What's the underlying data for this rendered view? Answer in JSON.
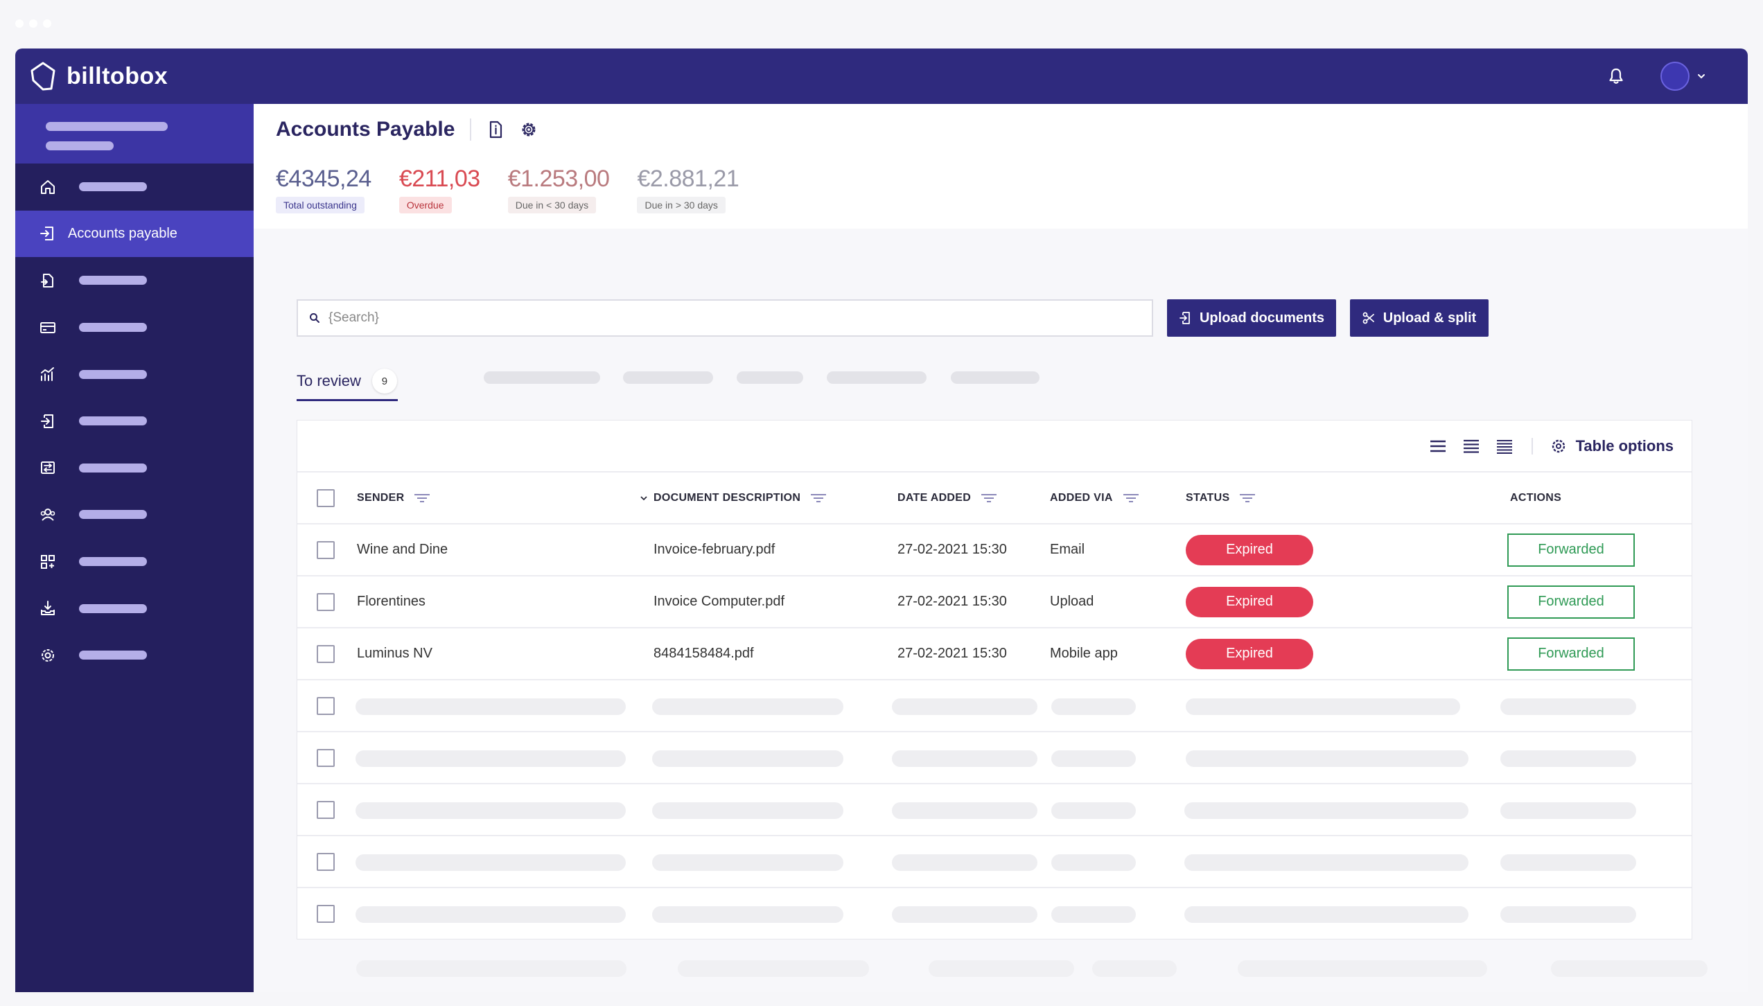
{
  "brand": {
    "name": "billtobox"
  },
  "sidebar": {
    "active_item": "Accounts payable",
    "items": [
      {
        "icon": "home-icon"
      },
      {
        "icon": "document-in-icon",
        "label": "Accounts payable"
      },
      {
        "icon": "document-out-icon"
      },
      {
        "icon": "card-icon"
      },
      {
        "icon": "chart-icon"
      },
      {
        "icon": "import-icon"
      },
      {
        "icon": "transfer-icon"
      },
      {
        "icon": "contacts-icon"
      },
      {
        "icon": "apps-icon"
      },
      {
        "icon": "download-icon"
      },
      {
        "icon": "settings-icon"
      }
    ]
  },
  "header": {
    "title": "Accounts Payable",
    "stats": [
      {
        "amount": "€4345,24",
        "label": "Total outstanding"
      },
      {
        "amount": "€211,03",
        "label": "Overdue"
      },
      {
        "amount": "€1.253,00",
        "label": "Due in < 30 days"
      },
      {
        "amount": "€2.881,21",
        "label": "Due in > 30 days"
      }
    ]
  },
  "toolbar": {
    "search_placeholder": "{Search}",
    "upload_label": "Upload documents",
    "split_label": "Upload & split"
  },
  "tabs": {
    "active_label": "To review",
    "active_count": "9"
  },
  "table": {
    "options_label": "Table options",
    "columns": {
      "sender": "SENDER",
      "description": "DOCUMENT DESCRIPTION",
      "date": "DATE ADDED",
      "via": "ADDED VIA",
      "status": "STATUS",
      "actions": "ACTIONS"
    },
    "rows": [
      {
        "sender": "Wine and Dine",
        "description": "Invoice-february.pdf",
        "date": "27-02-2021 15:30",
        "via": "Email",
        "status": "Expired",
        "action": "Forwarded"
      },
      {
        "sender": "Florentines",
        "description": "Invoice Computer.pdf",
        "date": "27-02-2021 15:30",
        "via": "Upload",
        "status": "Expired",
        "action": "Forwarded"
      },
      {
        "sender": "Luminus NV",
        "description": "8484158484.pdf",
        "date": "27-02-2021 15:30",
        "via": "Mobile app",
        "status": "Expired",
        "action": "Forwarded"
      }
    ]
  },
  "colors": {
    "brand": "#2f2a7e",
    "sidebar": "#241f5e",
    "active": "#4a43bf",
    "expired": "#e43c55",
    "forwarded": "#2f9a55"
  }
}
